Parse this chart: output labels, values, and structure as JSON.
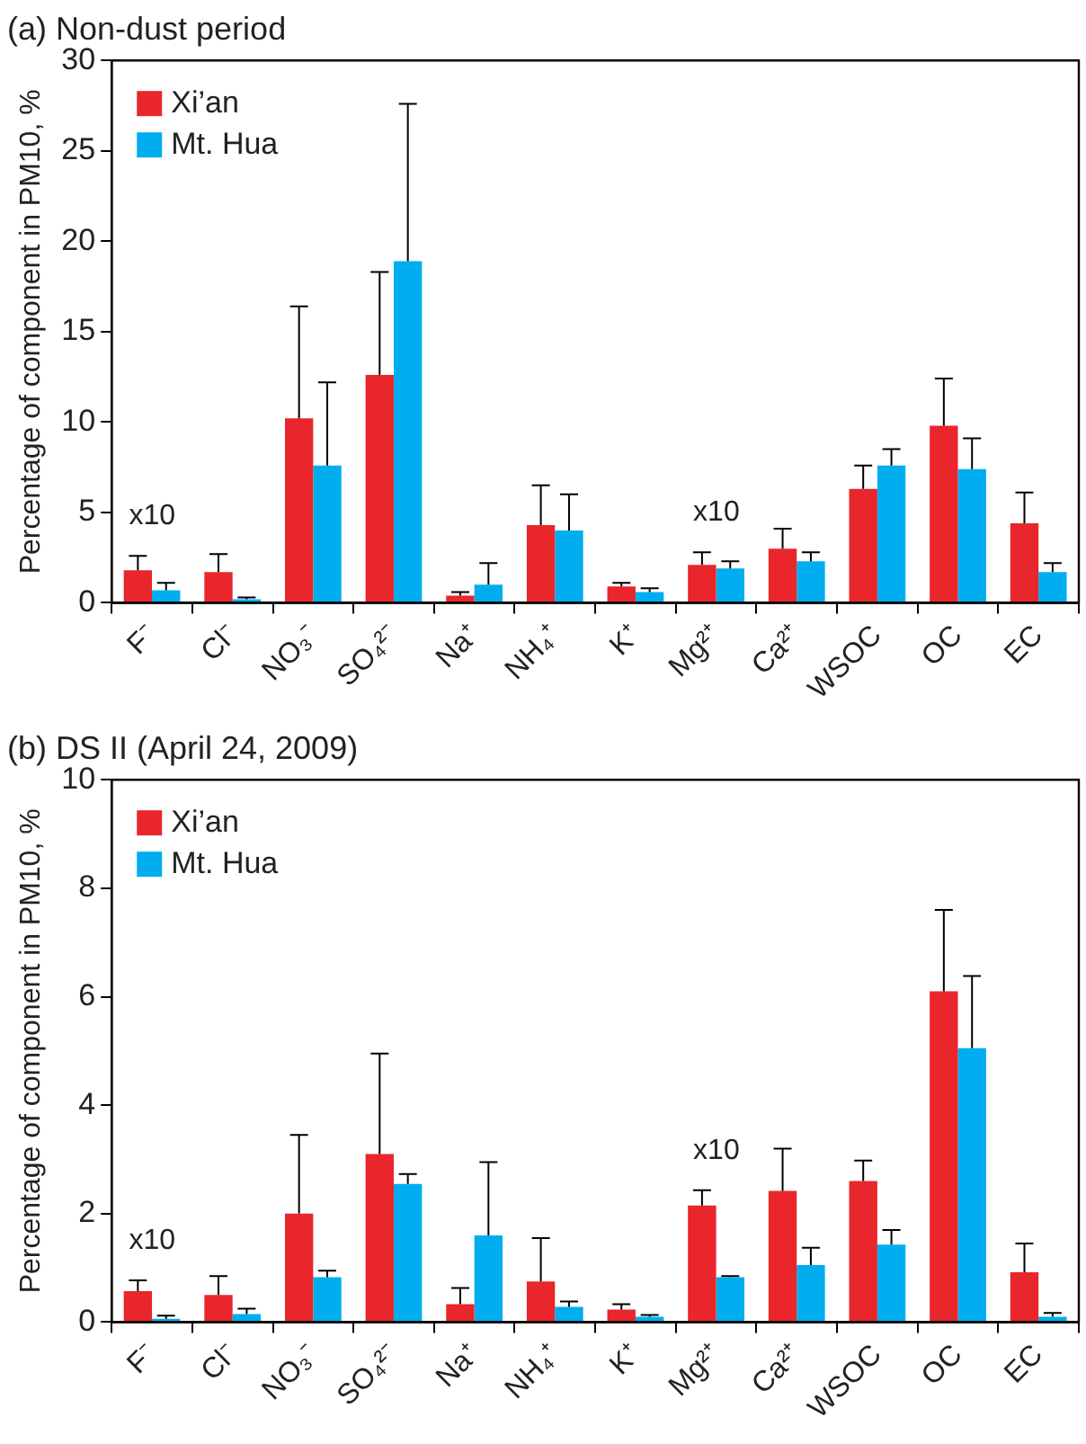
{
  "chart_data": [
    {
      "type": "bar",
      "title": "(a) Non-dust period",
      "ylabel": "Percentage of component in PM10, %",
      "categories": [
        "F⁻",
        "Cl⁻",
        "NO₃⁻",
        "SO₄²⁻",
        "Na⁺",
        "NH₄⁺",
        "K⁺",
        "Mg²⁺",
        "Ca²⁺",
        "WSOC",
        "OC",
        "EC"
      ],
      "series": [
        {
          "name": "Xi’an",
          "color": "#e8262b",
          "values": [
            1.8,
            1.7,
            10.2,
            12.6,
            0.4,
            4.3,
            0.9,
            2.1,
            3.0,
            6.3,
            9.8,
            4.4
          ],
          "errors": [
            [
              1.8,
              2.6
            ],
            [
              1.7,
              2.7
            ],
            [
              10.2,
              16.4
            ],
            [
              12.6,
              18.3
            ],
            [
              0.4,
              0.6
            ],
            [
              4.3,
              6.5
            ],
            [
              0.9,
              1.1
            ],
            [
              2.1,
              2.8
            ],
            [
              3.0,
              4.1
            ],
            [
              6.3,
              7.6
            ],
            [
              9.8,
              12.4
            ],
            [
              4.4,
              6.1
            ]
          ]
        },
        {
          "name": "Mt. Hua",
          "color": "#00aeef",
          "values": [
            0.7,
            0.2,
            7.6,
            18.9,
            1.0,
            4.0,
            0.6,
            1.9,
            2.3,
            7.6,
            7.4,
            1.7
          ],
          "errors": [
            [
              0.7,
              1.1
            ],
            [
              0.2,
              0.3
            ],
            [
              7.6,
              12.2
            ],
            [
              18.9,
              27.6
            ],
            [
              1.0,
              2.2
            ],
            [
              4.0,
              6.0
            ],
            [
              0.6,
              0.8
            ],
            [
              1.9,
              2.3
            ],
            [
              2.3,
              2.8
            ],
            [
              7.6,
              8.5
            ],
            [
              7.4,
              9.1
            ],
            [
              1.7,
              2.2
            ]
          ]
        }
      ],
      "ylim": [
        0,
        30
      ],
      "yticks": [
        0,
        5,
        10,
        15,
        20,
        25,
        30
      ],
      "grid": false,
      "legend": "top left",
      "annotations": [
        "x10",
        "x10"
      ]
    },
    {
      "type": "bar",
      "title": "(b) DS II (April 24, 2009)",
      "ylabel": "Percentage of component in PM10, %",
      "categories": [
        "F⁻",
        "Cl⁻",
        "NO₃⁻",
        "SO₄²⁻",
        "Na⁺",
        "NH₄⁺",
        "K⁺",
        "Mg²⁺",
        "Ca²⁺",
        "WSOC",
        "OC",
        "EC"
      ],
      "series": [
        {
          "name": "Xi’an",
          "color": "#e8262b",
          "values": [
            0.57,
            0.5,
            2.0,
            3.1,
            0.33,
            0.75,
            0.23,
            2.15,
            2.42,
            2.6,
            6.1,
            0.92
          ],
          "errors": [
            [
              0.57,
              0.77
            ],
            [
              0.5,
              0.85
            ],
            [
              2.0,
              3.45
            ],
            [
              3.1,
              4.95
            ],
            [
              0.33,
              0.63
            ],
            [
              0.75,
              1.55
            ],
            [
              0.23,
              0.33
            ],
            [
              2.15,
              2.43
            ],
            [
              2.42,
              3.2
            ],
            [
              2.6,
              2.98
            ],
            [
              6.1,
              7.6
            ],
            [
              0.92,
              1.45
            ]
          ]
        },
        {
          "name": "Mt. Hua",
          "color": "#00aeef",
          "values": [
            0.06,
            0.15,
            0.83,
            2.55,
            1.6,
            0.28,
            0.1,
            0.83,
            1.05,
            1.43,
            5.05,
            0.1
          ],
          "errors": [
            [
              0.06,
              0.12
            ],
            [
              0.15,
              0.25
            ],
            [
              0.83,
              0.95
            ],
            [
              2.55,
              2.73
            ],
            [
              1.6,
              2.95
            ],
            [
              0.28,
              0.38
            ],
            [
              0.1,
              0.13
            ],
            [
              0.83,
              0.85
            ],
            [
              1.05,
              1.37
            ],
            [
              1.43,
              1.7
            ],
            [
              5.05,
              6.38
            ],
            [
              0.1,
              0.17
            ]
          ]
        }
      ],
      "ylim": [
        0,
        10
      ],
      "yticks": [
        0,
        2,
        4,
        6,
        8,
        10
      ],
      "grid": false,
      "legend": "top left",
      "annotations": [
        "x10",
        "x10"
      ]
    }
  ]
}
